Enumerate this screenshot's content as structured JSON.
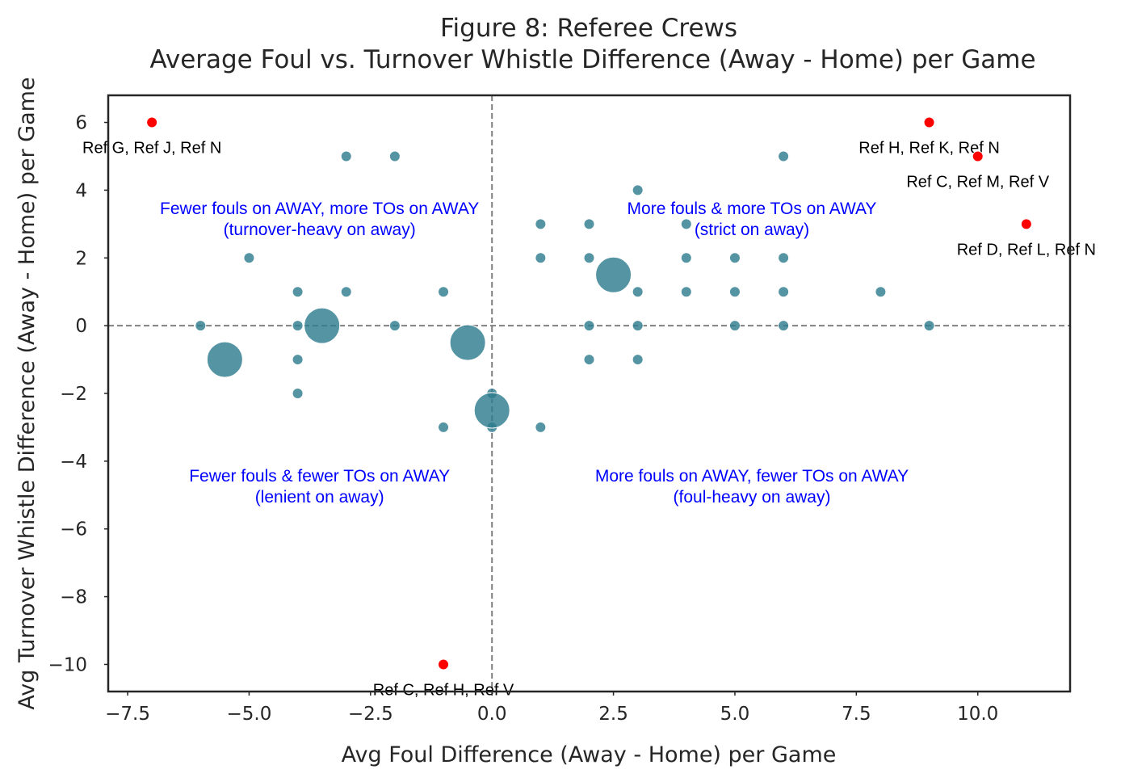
{
  "chart_data": {
    "type": "scatter",
    "title": "Figure 8: Referee Crews",
    "subtitle": "Average Foul vs. Turnover Whistle Difference (Away - Home) per Game",
    "xlabel": "Avg Foul Difference (Away - Home) per Game",
    "ylabel": "Avg Turnover Whistle Difference (Away - Home) per Game",
    "xlim": [
      -7.9,
      11.9
    ],
    "ylim": [
      -10.8,
      6.8
    ],
    "xticks": [
      -7.5,
      -5.0,
      -2.5,
      0.0,
      2.5,
      5.0,
      7.5,
      10.0
    ],
    "xtick_labels": [
      "−7.5",
      "−5.0",
      "−2.5",
      "0.0",
      "2.5",
      "5.0",
      "7.5",
      "10.0"
    ],
    "yticks": [
      6,
      4,
      2,
      0,
      -2,
      -4,
      -6,
      -8,
      -10
    ],
    "ytick_labels": [
      "6",
      "4",
      "2",
      "0",
      "−2",
      "−4",
      "−6",
      "−8",
      "−10"
    ],
    "grid": false,
    "reference_lines": {
      "x": 0,
      "y": 0
    },
    "colors": {
      "point": "#2e7d8f",
      "outlier": "#ff0000",
      "quadrant_text": "#0000ff",
      "ref_line": "#808080"
    },
    "quadrant_labels": [
      {
        "line1": "Fewer fouls on AWAY, more TOs on AWAY",
        "line2": "(turnover-heavy on away)",
        "x": -3.55,
        "y": 3.3
      },
      {
        "line1": "More fouls & more TOs on AWAY",
        "line2": "(strict on away)",
        "x": 5.35,
        "y": 3.3
      },
      {
        "line1": "Fewer fouls & fewer TOs on AWAY",
        "line2": "(lenient on away)",
        "x": -3.55,
        "y": -4.6
      },
      {
        "line1": "More fouls on AWAY, fewer TOs on AWAY",
        "line2": "(foul-heavy on away)",
        "x": 5.35,
        "y": -4.6
      }
    ],
    "points": [
      {
        "x": -5.5,
        "y": -1.0,
        "size": 3
      },
      {
        "x": -3.5,
        "y": 0.0,
        "size": 3
      },
      {
        "x": -0.5,
        "y": -0.5,
        "size": 3
      },
      {
        "x": 0.0,
        "y": -2.5,
        "size": 3
      },
      {
        "x": 2.5,
        "y": 1.5,
        "size": 3
      },
      {
        "x": -6,
        "y": 0,
        "size": 1
      },
      {
        "x": -5,
        "y": 2,
        "size": 1
      },
      {
        "x": -4,
        "y": 1,
        "size": 1
      },
      {
        "x": -4,
        "y": 0,
        "size": 1
      },
      {
        "x": -4,
        "y": -1,
        "size": 1
      },
      {
        "x": -4,
        "y": -2,
        "size": 1
      },
      {
        "x": -3,
        "y": 5,
        "size": 1
      },
      {
        "x": -3,
        "y": 1,
        "size": 1
      },
      {
        "x": -2,
        "y": 5,
        "size": 1
      },
      {
        "x": -2,
        "y": 0,
        "size": 1
      },
      {
        "x": -1,
        "y": 1,
        "size": 1
      },
      {
        "x": -1,
        "y": -3,
        "size": 1
      },
      {
        "x": 0,
        "y": -2,
        "size": 1
      },
      {
        "x": 0,
        "y": -3,
        "size": 1
      },
      {
        "x": 1,
        "y": 3,
        "size": 1
      },
      {
        "x": 1,
        "y": 2,
        "size": 1
      },
      {
        "x": 1,
        "y": -3,
        "size": 1
      },
      {
        "x": 2,
        "y": 3,
        "size": 1
      },
      {
        "x": 2,
        "y": 2,
        "size": 1
      },
      {
        "x": 2,
        "y": 0,
        "size": 1
      },
      {
        "x": 2,
        "y": -1,
        "size": 1
      },
      {
        "x": 3,
        "y": 4,
        "size": 1
      },
      {
        "x": 3,
        "y": 1,
        "size": 1
      },
      {
        "x": 3,
        "y": 0,
        "size": 1
      },
      {
        "x": 3,
        "y": -1,
        "size": 1
      },
      {
        "x": 4,
        "y": 3,
        "size": 1
      },
      {
        "x": 4,
        "y": 2,
        "size": 1
      },
      {
        "x": 4,
        "y": 1,
        "size": 1
      },
      {
        "x": 5,
        "y": 2,
        "size": 1
      },
      {
        "x": 5,
        "y": 1,
        "size": 1
      },
      {
        "x": 5,
        "y": 0,
        "size": 1
      },
      {
        "x": 6,
        "y": 5,
        "size": 1
      },
      {
        "x": 6,
        "y": 2,
        "size": 1
      },
      {
        "x": 6,
        "y": 1,
        "size": 1
      },
      {
        "x": 6,
        "y": 0,
        "size": 1
      },
      {
        "x": 8,
        "y": 1,
        "size": 1
      },
      {
        "x": 9,
        "y": 0,
        "size": 1
      }
    ],
    "outliers": [
      {
        "x": -7,
        "y": 6,
        "label": "Ref G, Ref J, Ref N"
      },
      {
        "x": 9,
        "y": 6,
        "label": "Ref H, Ref K, Ref N"
      },
      {
        "x": 10,
        "y": 5,
        "label": "Ref C, Ref M, Ref V"
      },
      {
        "x": 11,
        "y": 3,
        "label": "Ref D, Ref L, Ref N"
      },
      {
        "x": -1,
        "y": -10,
        "label": "Ref C, Ref H, Ref V"
      }
    ]
  }
}
